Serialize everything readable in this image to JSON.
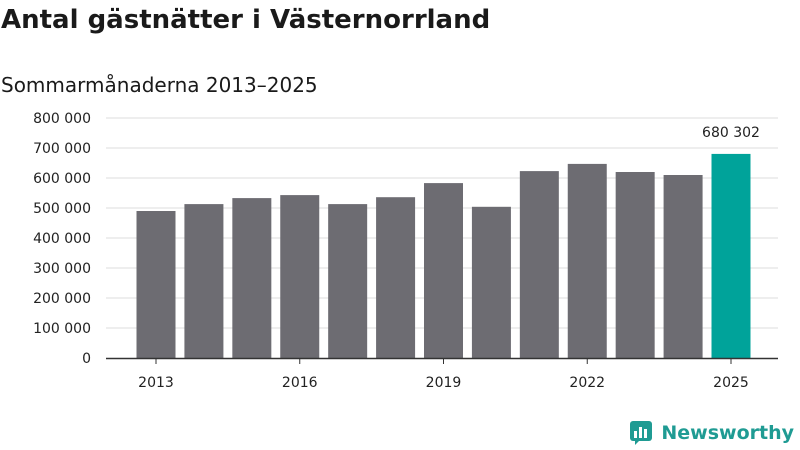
{
  "colors": {
    "bar": "#6d6c72",
    "highlight": "#00a39a",
    "grid": "#dddddd",
    "axis": "#333333",
    "brand": "#1f9b93"
  },
  "logo": {
    "icon": "newsworthy-logo-icon",
    "name": "Newsworthy"
  },
  "chart_data": {
    "type": "bar",
    "title": "Antal gästnätter i Västernorrland",
    "subtitle": "Sommarmånaderna 2013–2025",
    "xlabel": "",
    "ylabel": "",
    "categories": [
      "2013",
      "2014",
      "2015",
      "2016",
      "2017",
      "2018",
      "2019",
      "2020",
      "2021",
      "2022",
      "2023",
      "2024",
      "2025"
    ],
    "x_tick_labels": [
      "2013",
      "2016",
      "2019",
      "2022",
      "2025"
    ],
    "values": [
      490000,
      513000,
      533000,
      543000,
      513000,
      536000,
      583000,
      504000,
      623000,
      647000,
      620000,
      610000,
      680302
    ],
    "ylim": [
      0,
      800000
    ],
    "y_ticks": [
      0,
      100000,
      200000,
      300000,
      400000,
      500000,
      600000,
      700000,
      800000
    ],
    "y_tick_labels": [
      "0",
      "100 000",
      "200 000",
      "300 000",
      "400 000",
      "500 000",
      "600 000",
      "700 000",
      "800 000"
    ],
    "highlight_index": 12,
    "annotation": "680 302",
    "grid": true,
    "legend": "none"
  }
}
